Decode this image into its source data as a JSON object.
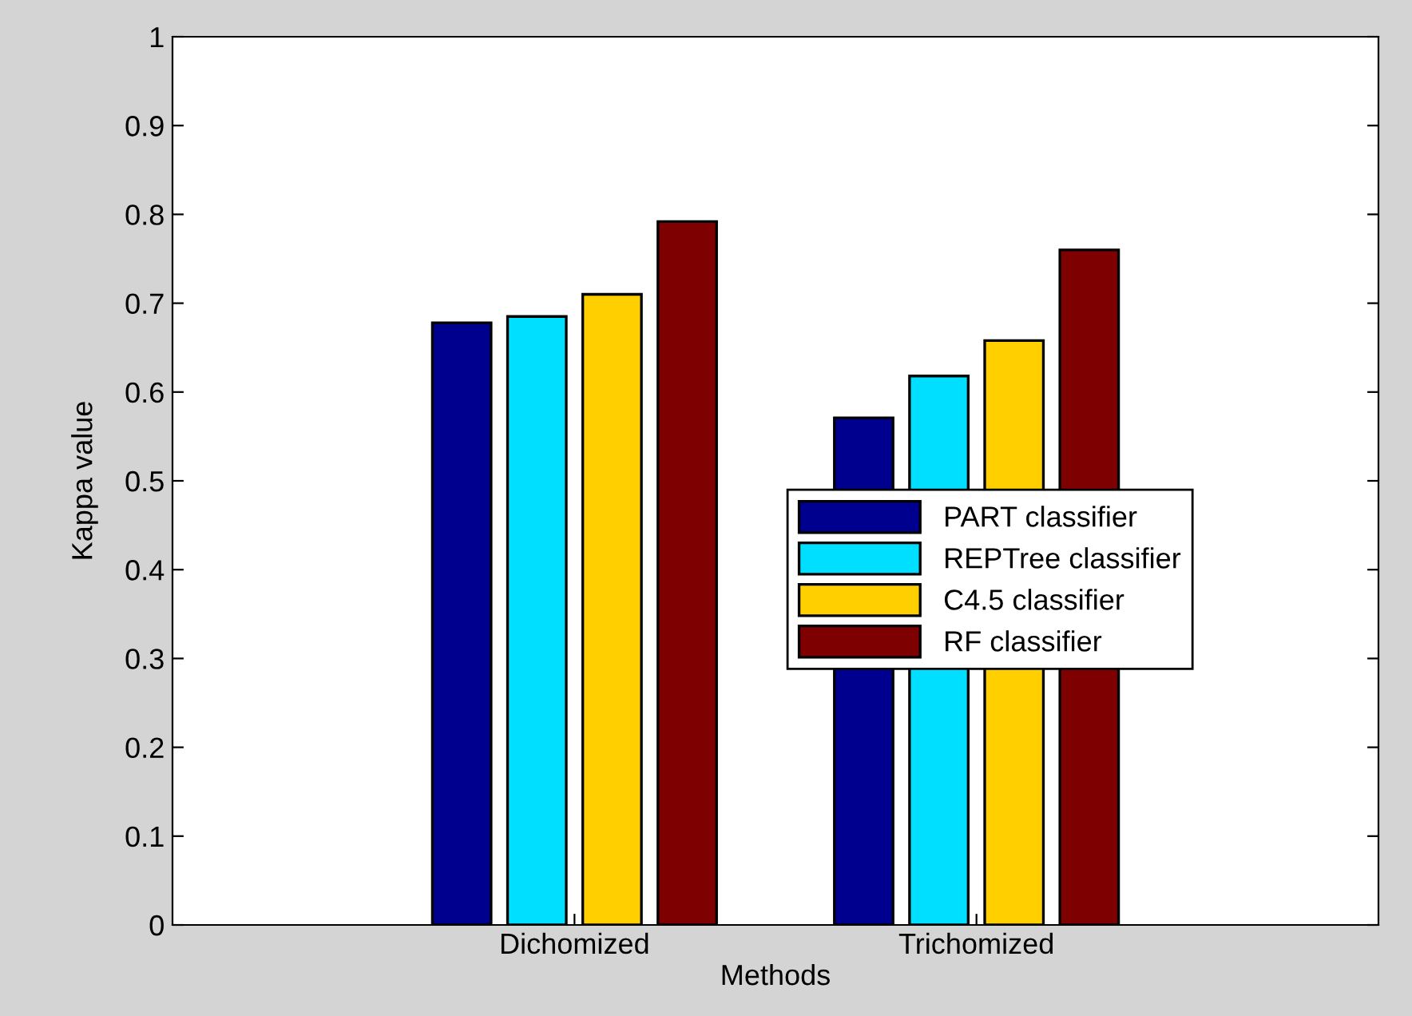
{
  "chart_data": {
    "type": "bar",
    "xlabel": "Methods",
    "ylabel": "Kappa value",
    "categories": [
      "Dichomized",
      "Trichomized"
    ],
    "series": [
      {
        "name": "PART classifier",
        "color": "#00008f",
        "values": [
          0.678,
          0.571
        ]
      },
      {
        "name": "REPTree classifier",
        "color": "#00dfff",
        "values": [
          0.685,
          0.618
        ]
      },
      {
        "name": "C4.5 classifier",
        "color": "#ffcf00",
        "values": [
          0.71,
          0.658
        ]
      },
      {
        "name": "RF classifier",
        "color": "#7f0000",
        "values": [
          0.792,
          0.76
        ]
      }
    ],
    "ylim": [
      0,
      1
    ],
    "yticks": [
      0,
      0.1,
      0.2,
      0.3,
      0.4,
      0.5,
      0.6,
      0.7,
      0.8,
      0.9,
      1
    ],
    "grid": false,
    "legend": "right"
  }
}
